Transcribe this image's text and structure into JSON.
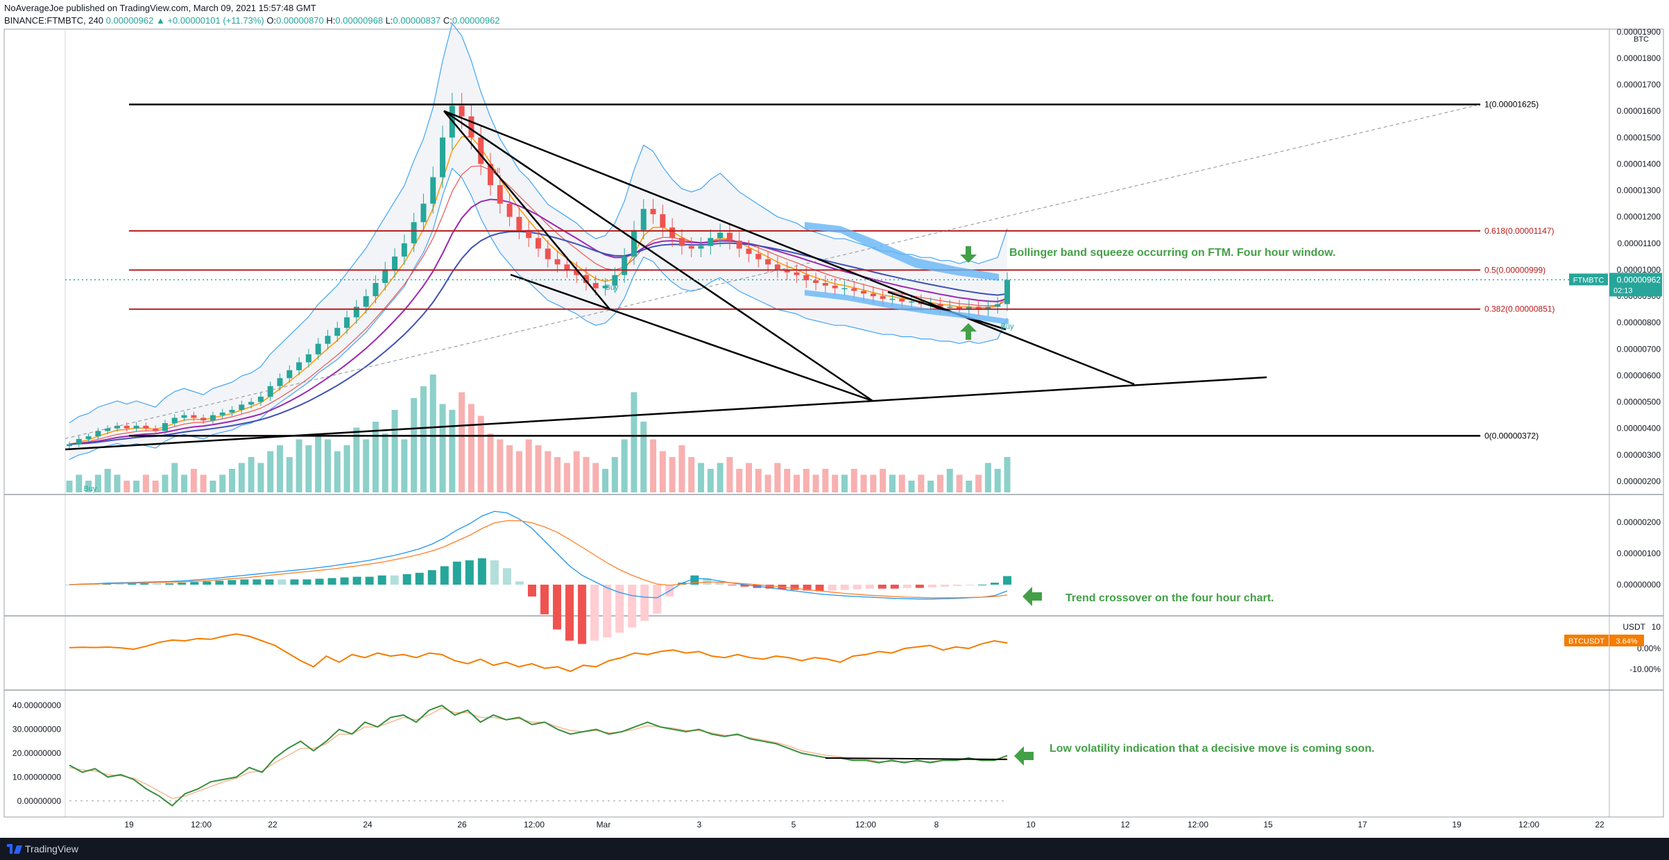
{
  "header": {
    "line1": "NoAverageJoe published on TradingView.com, March 09, 2021 15:57:48 GMT",
    "symbol": "BINANCE:FTMBTC, 240",
    "last": "0.00000962",
    "change": "▲ +0.00000101 (+11.73%)",
    "o_label": "O:",
    "o": "0.00000870",
    "h_label": "H:",
    "h": "0.00000968",
    "l_label": "L:",
    "l": "0.00000837",
    "c_label": "C:",
    "c": "0.00000962"
  },
  "footer": {
    "brand": "TradingView"
  },
  "colors": {
    "up": "#26a69a",
    "down": "#ef5350",
    "vol_up": "#80cbc4",
    "vol_down": "#f7a7a7",
    "macd_hist_up": "#26a69a",
    "macd_line": "#2196f3",
    "signal_line": "#ff7f27",
    "btc_line": "#f57c00",
    "vol_ind": "#388e3c",
    "vol_ind_ma": "#f5b088",
    "fib": "#b71c1c",
    "annotation": "#43a047",
    "band": "#42a5f5"
  },
  "chart_data": [
    {
      "type": "candlestick",
      "panel": "main",
      "symbol": "FTMBTC",
      "unit": "BTC",
      "yticks": [
        "0.00001900",
        "0.00001800",
        "0.00001700",
        "0.00001600",
        "0.00001500",
        "0.00001400",
        "0.00001300",
        "0.00001200",
        "0.00001100",
        "0.00001000",
        "0.00000900",
        "0.00000800",
        "0.00000700",
        "0.00000600",
        "0.00000500",
        "0.00000400",
        "0.00000300",
        "0.00000200"
      ],
      "ylim": [
        1.5e-06,
        1.91e-05
      ],
      "xticks": [
        "19",
        "12:00",
        "22",
        "24",
        "26",
        "12:00",
        "Mar",
        "3",
        "5",
        "12:00",
        "8",
        "10",
        "12",
        "12:00",
        "15",
        "17",
        "19",
        "12:00",
        "22"
      ],
      "last_price_label": "FTMBTC",
      "last_price": "0.00000962",
      "countdown": "02:13",
      "fib_levels": [
        {
          "label": "1(0.00001625)",
          "value": 1.625e-05
        },
        {
          "label": "0.618(0.00001147)",
          "value": 1.147e-05
        },
        {
          "label": "0.5(0.00000999)",
          "value": 9.99e-06
        },
        {
          "label": "0.382(0.00000851)",
          "value": 8.51e-06
        },
        {
          "label": "0(0.00000372)",
          "value": 3.72e-06
        }
      ],
      "signals": [
        "Buy",
        "Sell",
        "Buy",
        "Buy"
      ],
      "annotations": [
        "Bollinger band squeeze occurring on FTM. Four hour window."
      ],
      "close": [
        3.4,
        3.6,
        3.7,
        3.9,
        4.0,
        4.1,
        4.0,
        4.1,
        4.0,
        3.9,
        4.2,
        4.4,
        4.5,
        4.4,
        4.3,
        4.5,
        4.6,
        4.7,
        4.9,
        5.0,
        5.2,
        5.6,
        5.9,
        6.2,
        6.5,
        6.8,
        7.2,
        7.5,
        7.8,
        8.2,
        8.6,
        9.0,
        9.5,
        10.0,
        10.5,
        11.0,
        11.8,
        12.5,
        13.5,
        15.0,
        16.2,
        15.8,
        15.0,
        14.0,
        13.2,
        12.5,
        12.0,
        11.5,
        11.2,
        10.8,
        10.4,
        10.2,
        10.0,
        9.8,
        9.5,
        9.3,
        9.4,
        9.8,
        10.5,
        11.5,
        12.3,
        12.1,
        11.6,
        11.2,
        10.9,
        10.8,
        10.9,
        11.2,
        11.4,
        11.1,
        10.8,
        10.6,
        10.4,
        10.2,
        10.0,
        9.9,
        9.8,
        9.6,
        9.5,
        9.4,
        9.3,
        9.3,
        9.2,
        9.1,
        9.0,
        8.9,
        8.9,
        8.8,
        8.8,
        8.7,
        8.7,
        8.6,
        8.6,
        8.5,
        8.6,
        8.5,
        8.6,
        8.7,
        9.62
      ],
      "volume": [
        2,
        3,
        2,
        3,
        4,
        3,
        2,
        2,
        3,
        2,
        3,
        5,
        3,
        4,
        3,
        2,
        3,
        4,
        5,
        6,
        5,
        7,
        8,
        6,
        9,
        8,
        10,
        9,
        7,
        8,
        11,
        9,
        12,
        10,
        14,
        9,
        16,
        18,
        20,
        15,
        14,
        17,
        15,
        13,
        10,
        9,
        8,
        7,
        9,
        8,
        7,
        6,
        5,
        7,
        6,
        5,
        4,
        6,
        9,
        17,
        12,
        9,
        7,
        6,
        8,
        6,
        5,
        4,
        5,
        6,
        4,
        5,
        4,
        3,
        5,
        4,
        3,
        4,
        3,
        4,
        3,
        3,
        4,
        3,
        3,
        4,
        3,
        3,
        2,
        3,
        2,
        3,
        4,
        3,
        2,
        3,
        5,
        4,
        6
      ]
    },
    {
      "type": "line",
      "panel": "macd",
      "yticks": [
        "0.00000200",
        "0.00000100",
        "0.00000000"
      ],
      "annotations": [
        "Trend crossover on the four hour chart."
      ],
      "series": [
        {
          "values": [
            0.0,
            0.02,
            0.03,
            0.05,
            0.06,
            0.07,
            0.08,
            0.09,
            0.1,
            0.12,
            0.15,
            0.18,
            0.22,
            0.26,
            0.3,
            0.34,
            0.38,
            0.42,
            0.46,
            0.5,
            0.55,
            0.6,
            0.66,
            0.72,
            0.78,
            0.86,
            0.94,
            1.04,
            1.15,
            1.3,
            1.5,
            1.75,
            1.95,
            2.2,
            2.35,
            2.3,
            2.1,
            1.8,
            1.4,
            1.0,
            0.6,
            0.3,
            0.1,
            -0.1,
            -0.25,
            -0.35,
            -0.4,
            -0.42,
            -0.2,
            0.05,
            0.2,
            0.18,
            0.12,
            0.05,
            0.0,
            -0.05,
            -0.1,
            -0.15,
            -0.2,
            -0.25,
            -0.3,
            -0.33,
            -0.36,
            -0.38,
            -0.4,
            -0.42,
            -0.44,
            -0.45,
            -0.46,
            -0.46,
            -0.45,
            -0.44,
            -0.42,
            -0.4,
            -0.35,
            -0.2
          ]
        },
        {
          "values": [
            0.0,
            0.01,
            0.02,
            0.03,
            0.04,
            0.05,
            0.06,
            0.07,
            0.08,
            0.09,
            0.11,
            0.13,
            0.16,
            0.19,
            0.22,
            0.26,
            0.3,
            0.34,
            0.38,
            0.42,
            0.46,
            0.5,
            0.55,
            0.6,
            0.66,
            0.72,
            0.8,
            0.88,
            0.97,
            1.08,
            1.22,
            1.4,
            1.58,
            1.8,
            1.98,
            2.05,
            2.05,
            1.98,
            1.85,
            1.68,
            1.45,
            1.2,
            0.95,
            0.7,
            0.48,
            0.3,
            0.15,
            0.02,
            -0.02,
            0.02,
            0.06,
            0.08,
            0.08,
            0.06,
            0.03,
            0.0,
            -0.04,
            -0.08,
            -0.12,
            -0.16,
            -0.2,
            -0.24,
            -0.28,
            -0.31,
            -0.34,
            -0.36,
            -0.38,
            -0.4,
            -0.41,
            -0.42,
            -0.42,
            -0.42,
            -0.41,
            -0.4,
            -0.38,
            -0.33
          ]
        }
      ]
    },
    {
      "type": "line",
      "panel": "btcusdt",
      "yticks": [
        "10",
        "0.00%",
        "-10.00%"
      ],
      "unit_label": "USDT",
      "label": "BTCUSDT",
      "value_label": "3.64%",
      "series": [
        {
          "values": [
            0.5,
            0.8,
            0.6,
            0.9,
            0.4,
            -0.5,
            1.5,
            4.0,
            5.5,
            5.0,
            6.5,
            6.0,
            8.0,
            9.5,
            8.0,
            5.0,
            2.0,
            -3.0,
            -8.0,
            -12.0,
            -5.0,
            -9.0,
            -4.0,
            -6.0,
            -3.0,
            -5.0,
            -4.0,
            -6.0,
            -3.0,
            -4.0,
            -8.0,
            -10.0,
            -7.0,
            -11.0,
            -9.0,
            -12.0,
            -10.0,
            -13.0,
            -12.0,
            -15.0,
            -11.0,
            -12.0,
            -8.0,
            -6.0,
            -3.0,
            -4.0,
            -2.0,
            -1.0,
            -3.0,
            -2.0,
            -5.0,
            -6.0,
            -4.0,
            -6.0,
            -7.0,
            -5.0,
            -6.0,
            -8.0,
            -6.0,
            -7.0,
            -9.0,
            -5.0,
            -4.0,
            -2.0,
            -3.0,
            0.0,
            1.0,
            2.0,
            -1.0,
            1.0,
            0.0,
            3.0,
            5.0,
            3.6
          ]
        }
      ]
    },
    {
      "type": "line",
      "panel": "volatility",
      "yticks": [
        "40.00000000",
        "30.00000000",
        "20.00000000",
        "10.00000000",
        "0.00000000"
      ],
      "ylim": [
        -5,
        45
      ],
      "annotations": [
        "Low volatility indication that a decisive move is coming soon."
      ],
      "series": [
        {
          "values": [
            15.0,
            12.0,
            13.5,
            10.0,
            11.0,
            9.0,
            5.0,
            2.0,
            -2.0,
            3.0,
            5.0,
            8.0,
            9.0,
            10.0,
            14.0,
            12.0,
            18.0,
            22.0,
            25.0,
            21.0,
            25.0,
            30.0,
            28.0,
            33.0,
            31.0,
            35.0,
            36.0,
            33.0,
            38.0,
            40.0,
            36.0,
            38.0,
            33.0,
            36.0,
            34.0,
            35.0,
            32.0,
            33.0,
            30.0,
            28.0,
            29.0,
            30.0,
            28.0,
            29.0,
            31.0,
            33.0,
            31.0,
            30.0,
            29.0,
            30.0,
            28.0,
            27.0,
            28.0,
            26.0,
            25.0,
            24.0,
            22.0,
            20.0,
            19.0,
            18.0,
            18.0,
            17.0,
            17.0,
            16.0,
            17.0,
            16.0,
            17.0,
            16.0,
            17.0,
            17.0,
            18.0,
            17.0,
            17.0,
            19.0
          ]
        },
        {
          "values": [
            14.0,
            13.0,
            12.5,
            11.0,
            10.5,
            9.5,
            7.0,
            4.0,
            1.0,
            2.0,
            4.0,
            6.0,
            8.0,
            9.5,
            12.0,
            12.5,
            16.0,
            19.0,
            22.0,
            22.0,
            24.0,
            28.0,
            28.0,
            31.0,
            31.0,
            33.0,
            35.0,
            34.0,
            36.0,
            39.0,
            37.0,
            37.0,
            35.0,
            35.0,
            34.0,
            34.5,
            33.0,
            33.0,
            31.0,
            29.5,
            29.0,
            29.5,
            28.5,
            29.0,
            30.0,
            31.5,
            31.0,
            30.5,
            29.5,
            29.5,
            28.5,
            27.5,
            27.5,
            26.5,
            25.5,
            24.5,
            23.0,
            21.0,
            20.0,
            19.0,
            18.5,
            17.5,
            17.5,
            16.5,
            16.5,
            16.5,
            16.5,
            16.5,
            17.0,
            17.0,
            17.5,
            17.0,
            17.0,
            18.0
          ]
        }
      ]
    }
  ]
}
